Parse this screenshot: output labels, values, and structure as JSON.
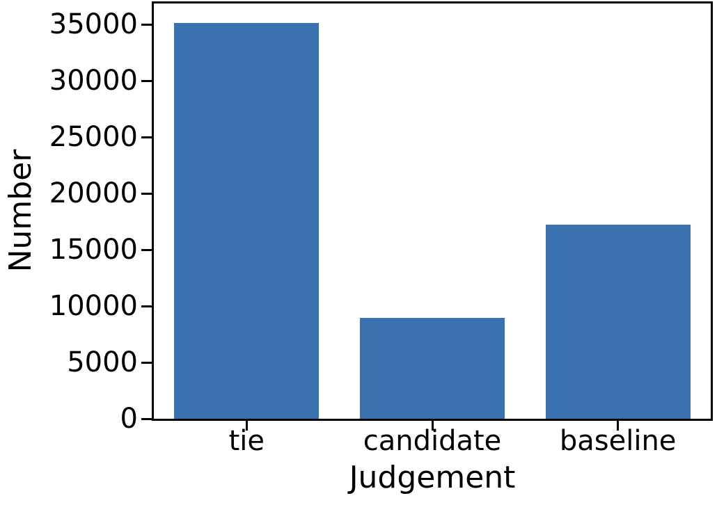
{
  "figure": {
    "background_color": "#ffffff",
    "axis_color": "#000000",
    "text_color": "#000000"
  },
  "chart_data": {
    "type": "bar",
    "title": "",
    "xlabel": "Judgement",
    "ylabel": "Number",
    "categories": [
      "tie",
      "candidate",
      "baseline"
    ],
    "values": [
      35100,
      8950,
      17200
    ],
    "bar_color": "#3a72b0",
    "bar_width_fraction": 0.78,
    "ylim": [
      0,
      36855
    ],
    "yticks": [
      0,
      5000,
      10000,
      15000,
      20000,
      25000,
      30000,
      35000
    ],
    "grid": false,
    "legend_position": "none"
  }
}
